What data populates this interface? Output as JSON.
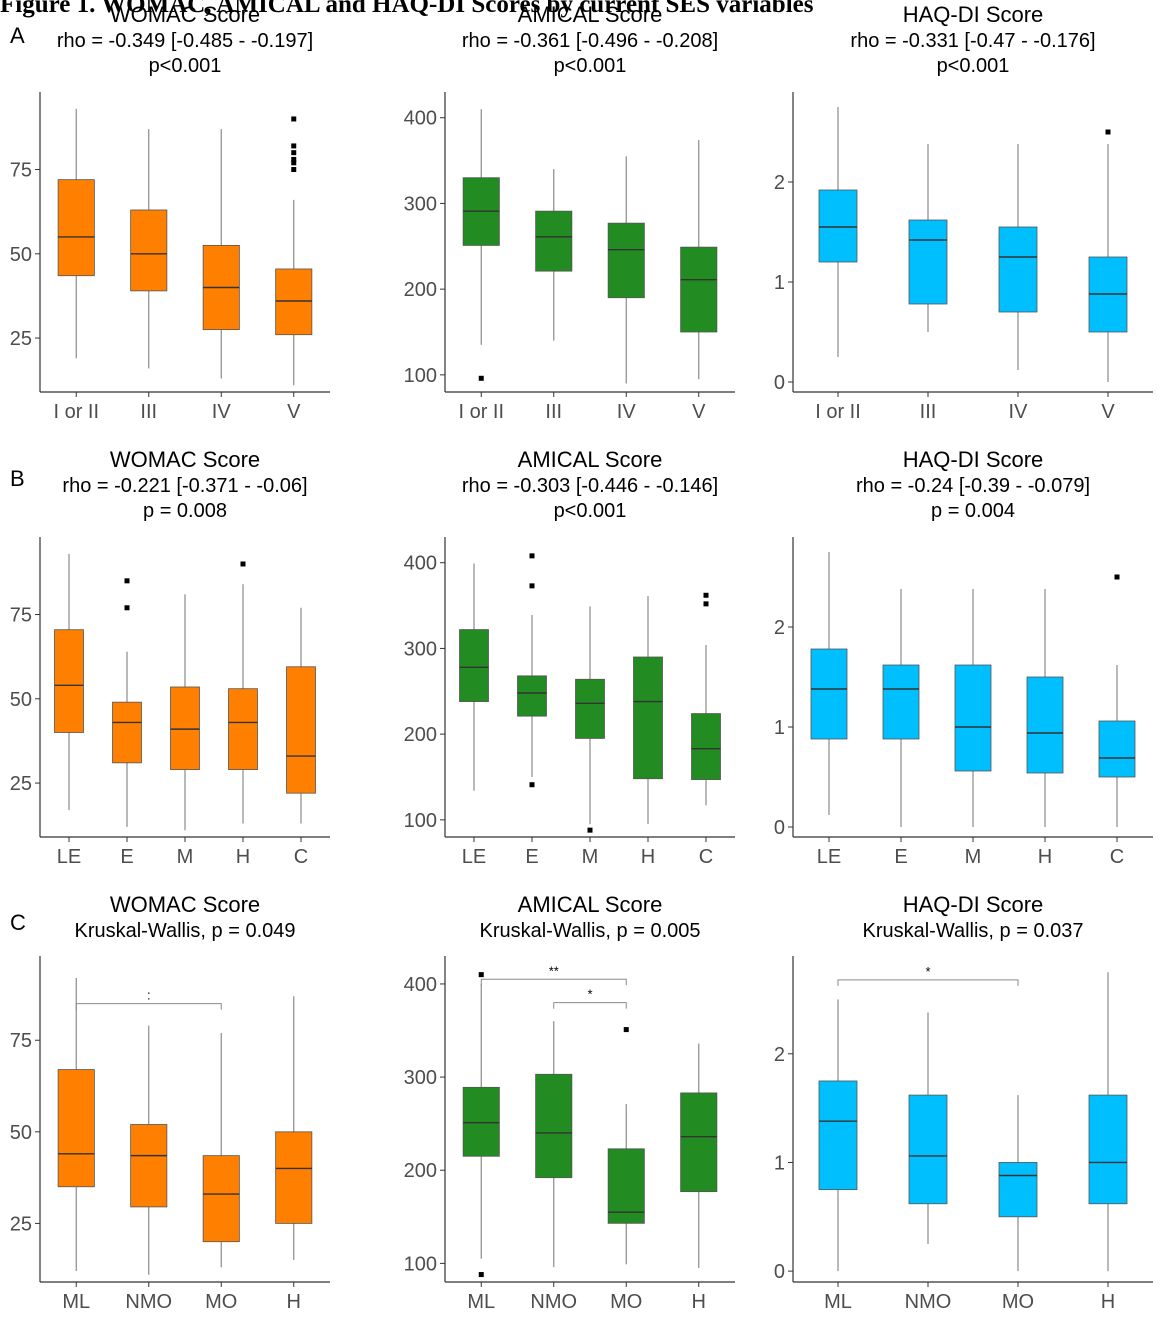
{
  "figure_title": "Figure 1. WOMAC, AMICAL and HAQ-DI Scores by current SES variables",
  "row_labels": [
    "A",
    "B",
    "C"
  ],
  "colors": {
    "womac": "#FF7F00",
    "amical": "#228B22",
    "haqdi": "#00BFFF",
    "axis": "#333333",
    "whisker": "#8a8a8a"
  },
  "panels": [
    {
      "id": "A-womac",
      "row": "A",
      "title": "WOMAC Score",
      "stat_lines": [
        "rho = -0.349 [-0.485 - -0.197]",
        "p<0.001"
      ]
    },
    {
      "id": "A-amical",
      "row": "A",
      "title": "AMICAL Score",
      "stat_lines": [
        "rho = -0.361 [-0.496 - -0.208]",
        "p<0.001"
      ]
    },
    {
      "id": "A-haqdi",
      "row": "A",
      "title": "HAQ-DI Score",
      "stat_lines": [
        "rho = -0.331 [-0.47 - -0.176]",
        "p<0.001"
      ]
    },
    {
      "id": "B-womac",
      "row": "B",
      "title": "WOMAC Score",
      "stat_lines": [
        "rho = -0.221 [-0.371 - -0.06]",
        "p = 0.008"
      ]
    },
    {
      "id": "B-amical",
      "row": "B",
      "title": "AMICAL Score",
      "stat_lines": [
        "rho = -0.303 [-0.446 - -0.146]",
        "p<0.001"
      ]
    },
    {
      "id": "B-haqdi",
      "row": "B",
      "title": "HAQ-DI Score",
      "stat_lines": [
        "rho = -0.24 [-0.39 - -0.079]",
        "p = 0.004"
      ]
    },
    {
      "id": "C-womac",
      "row": "C",
      "title": "WOMAC Score",
      "stat_lines": [
        "Kruskal-Wallis, p = 0.049"
      ]
    },
    {
      "id": "C-amical",
      "row": "C",
      "title": "AMICAL Score",
      "stat_lines": [
        "Kruskal-Wallis, p = 0.005"
      ]
    },
    {
      "id": "C-haqdi",
      "row": "C",
      "title": "HAQ-DI Score",
      "stat_lines": [
        "Kruskal-Wallis, p = 0.037"
      ]
    }
  ],
  "chart_data": [
    {
      "type": "box",
      "panel": "A-womac",
      "color": "#FF7F00",
      "ylim": [
        9,
        98
      ],
      "yticks": [
        25,
        50,
        75
      ],
      "categories": [
        "I or II",
        "III",
        "IV",
        "V"
      ],
      "boxes": [
        {
          "category": "I or II",
          "min": 19,
          "q1": 43.5,
          "median": 55,
          "q3": 72,
          "max": 93,
          "outliers": []
        },
        {
          "category": "III",
          "min": 16,
          "q1": 39,
          "median": 50,
          "q3": 63,
          "max": 87,
          "outliers": []
        },
        {
          "category": "IV",
          "min": 13,
          "q1": 27.5,
          "median": 40,
          "q3": 52.5,
          "max": 87,
          "outliers": []
        },
        {
          "category": "V",
          "min": 11,
          "q1": 26,
          "median": 36,
          "q3": 45.5,
          "max": 66,
          "outliers": [
            75,
            77,
            78,
            80,
            82,
            90
          ]
        }
      ],
      "brackets": []
    },
    {
      "type": "box",
      "panel": "A-amical",
      "color": "#228B22",
      "ylim": [
        80,
        430
      ],
      "yticks": [
        100,
        200,
        300,
        400
      ],
      "categories": [
        "I or II",
        "III",
        "IV",
        "V"
      ],
      "boxes": [
        {
          "category": "I or II",
          "min": 135,
          "q1": 251,
          "median": 291,
          "q3": 330,
          "max": 410,
          "outliers": [
            96
          ]
        },
        {
          "category": "III",
          "min": 140,
          "q1": 221,
          "median": 261,
          "q3": 291,
          "max": 340,
          "outliers": []
        },
        {
          "category": "IV",
          "min": 90,
          "q1": 190,
          "median": 246,
          "q3": 277,
          "max": 355,
          "outliers": []
        },
        {
          "category": "V",
          "min": 95,
          "q1": 150,
          "median": 211,
          "q3": 249,
          "max": 374,
          "outliers": []
        }
      ],
      "brackets": []
    },
    {
      "type": "box",
      "panel": "A-haqdi",
      "color": "#00BFFF",
      "ylim": [
        -0.1,
        2.9
      ],
      "yticks": [
        0,
        1,
        2
      ],
      "categories": [
        "I or II",
        "III",
        "IV",
        "V"
      ],
      "boxes": [
        {
          "category": "I or II",
          "min": 0.25,
          "q1": 1.2,
          "median": 1.55,
          "q3": 1.92,
          "max": 2.75,
          "outliers": []
        },
        {
          "category": "III",
          "min": 0.5,
          "q1": 0.78,
          "median": 1.42,
          "q3": 1.62,
          "max": 2.38,
          "outliers": []
        },
        {
          "category": "IV",
          "min": 0.12,
          "q1": 0.7,
          "median": 1.25,
          "q3": 1.55,
          "max": 2.38,
          "outliers": []
        },
        {
          "category": "V",
          "min": 0,
          "q1": 0.5,
          "median": 0.88,
          "q3": 1.25,
          "max": 2.38,
          "outliers": [
            2.5
          ]
        }
      ],
      "brackets": []
    },
    {
      "type": "box",
      "panel": "B-womac",
      "color": "#FF7F00",
      "ylim": [
        9,
        98
      ],
      "yticks": [
        25,
        50,
        75
      ],
      "categories": [
        "LE",
        "E",
        "M",
        "H",
        "C"
      ],
      "boxes": [
        {
          "category": "LE",
          "min": 17,
          "q1": 40,
          "median": 54,
          "q3": 70.5,
          "max": 93,
          "outliers": []
        },
        {
          "category": "E",
          "min": 12,
          "q1": 31,
          "median": 43,
          "q3": 49,
          "max": 64,
          "outliers": [
            77,
            85
          ]
        },
        {
          "category": "M",
          "min": 11,
          "q1": 29,
          "median": 41,
          "q3": 53.5,
          "max": 81,
          "outliers": []
        },
        {
          "category": "H",
          "min": 13,
          "q1": 29,
          "median": 43,
          "q3": 53,
          "max": 84,
          "outliers": [
            90
          ]
        },
        {
          "category": "C",
          "min": 13,
          "q1": 22,
          "median": 33,
          "q3": 59.5,
          "max": 77,
          "outliers": []
        }
      ],
      "brackets": []
    },
    {
      "type": "box",
      "panel": "B-amical",
      "color": "#228B22",
      "ylim": [
        80,
        430
      ],
      "yticks": [
        100,
        200,
        300,
        400
      ],
      "categories": [
        "LE",
        "E",
        "M",
        "H",
        "C"
      ],
      "boxes": [
        {
          "category": "LE",
          "min": 134,
          "q1": 238,
          "median": 278,
          "q3": 322,
          "max": 399,
          "outliers": []
        },
        {
          "category": "E",
          "min": 150,
          "q1": 221,
          "median": 248,
          "q3": 268,
          "max": 339,
          "outliers": [
            141,
            373,
            408
          ]
        },
        {
          "category": "M",
          "min": 95,
          "q1": 195,
          "median": 236,
          "q3": 264,
          "max": 349,
          "outliers": [
            88
          ]
        },
        {
          "category": "H",
          "min": 95,
          "q1": 148,
          "median": 238,
          "q3": 290,
          "max": 361,
          "outliers": []
        },
        {
          "category": "C",
          "min": 117,
          "q1": 147,
          "median": 183,
          "q3": 224,
          "max": 304,
          "outliers": [
            352,
            362
          ]
        }
      ],
      "brackets": []
    },
    {
      "type": "box",
      "panel": "B-haqdi",
      "color": "#00BFFF",
      "ylim": [
        -0.1,
        2.9
      ],
      "yticks": [
        0,
        1,
        2
      ],
      "categories": [
        "LE",
        "E",
        "M",
        "H",
        "C"
      ],
      "boxes": [
        {
          "category": "LE",
          "min": 0.12,
          "q1": 0.88,
          "median": 1.38,
          "q3": 1.78,
          "max": 2.75,
          "outliers": []
        },
        {
          "category": "E",
          "min": 0,
          "q1": 0.88,
          "median": 1.38,
          "q3": 1.62,
          "max": 2.38,
          "outliers": []
        },
        {
          "category": "M",
          "min": 0,
          "q1": 0.56,
          "median": 1.0,
          "q3": 1.62,
          "max": 2.38,
          "outliers": []
        },
        {
          "category": "H",
          "min": 0,
          "q1": 0.54,
          "median": 0.94,
          "q3": 1.5,
          "max": 2.38,
          "outliers": []
        },
        {
          "category": "C",
          "min": 0,
          "q1": 0.5,
          "median": 0.69,
          "q3": 1.06,
          "max": 1.62,
          "outliers": [
            2.5
          ]
        }
      ],
      "brackets": []
    },
    {
      "type": "box",
      "panel": "C-womac",
      "color": "#FF7F00",
      "ylim": [
        9,
        98
      ],
      "yticks": [
        25,
        50,
        75
      ],
      "categories": [
        "ML",
        "NMO",
        "MO",
        "H"
      ],
      "boxes": [
        {
          "category": "ML",
          "min": 12,
          "q1": 35,
          "median": 44,
          "q3": 67,
          "max": 92,
          "outliers": []
        },
        {
          "category": "NMO",
          "min": 11,
          "q1": 29.5,
          "median": 43.5,
          "q3": 52,
          "max": 79,
          "outliers": []
        },
        {
          "category": "MO",
          "min": 13,
          "q1": 20,
          "median": 33,
          "q3": 43.5,
          "max": 77,
          "outliers": []
        },
        {
          "category": "H",
          "min": 15,
          "q1": 25,
          "median": 40,
          "q3": 50,
          "max": 87,
          "outliers": []
        }
      ],
      "brackets": [
        {
          "from": "ML",
          "to": "MO",
          "y": 85,
          "label": ":"
        }
      ]
    },
    {
      "type": "box",
      "panel": "C-amical",
      "color": "#228B22",
      "ylim": [
        80,
        430
      ],
      "yticks": [
        100,
        200,
        300,
        400
      ],
      "categories": [
        "ML",
        "NMO",
        "MO",
        "H"
      ],
      "boxes": [
        {
          "category": "ML",
          "min": 105,
          "q1": 215,
          "median": 251,
          "q3": 289,
          "max": 400,
          "outliers": [
            88,
            410
          ]
        },
        {
          "category": "NMO",
          "min": 96,
          "q1": 192,
          "median": 240,
          "q3": 303,
          "max": 360,
          "outliers": []
        },
        {
          "category": "MO",
          "min": 99,
          "q1": 143,
          "median": 155,
          "q3": 223,
          "max": 271,
          "outliers": [
            351
          ]
        },
        {
          "category": "H",
          "min": 95,
          "q1": 177,
          "median": 236,
          "q3": 283,
          "max": 336,
          "outliers": []
        }
      ],
      "brackets": [
        {
          "from": "ML",
          "to": "MO",
          "y": 405,
          "label": "**"
        },
        {
          "from": "NMO",
          "to": "MO",
          "y": 380,
          "label": "*"
        }
      ]
    },
    {
      "type": "box",
      "panel": "C-haqdi",
      "color": "#00BFFF",
      "ylim": [
        -0.1,
        2.9
      ],
      "yticks": [
        0,
        1,
        2
      ],
      "categories": [
        "ML",
        "NMO",
        "MO",
        "H"
      ],
      "boxes": [
        {
          "category": "ML",
          "min": 0,
          "q1": 0.75,
          "median": 1.38,
          "q3": 1.75,
          "max": 2.5,
          "outliers": []
        },
        {
          "category": "NMO",
          "min": 0.25,
          "q1": 0.62,
          "median": 1.06,
          "q3": 1.62,
          "max": 2.38,
          "outliers": []
        },
        {
          "category": "MO",
          "min": 0,
          "q1": 0.5,
          "median": 0.88,
          "q3": 1.0,
          "max": 1.62,
          "outliers": []
        },
        {
          "category": "H",
          "min": 0,
          "q1": 0.62,
          "median": 1.0,
          "q3": 1.62,
          "max": 2.75,
          "outliers": []
        }
      ],
      "brackets": [
        {
          "from": "ML",
          "to": "MO",
          "y": 2.68,
          "label": "*"
        }
      ]
    }
  ]
}
